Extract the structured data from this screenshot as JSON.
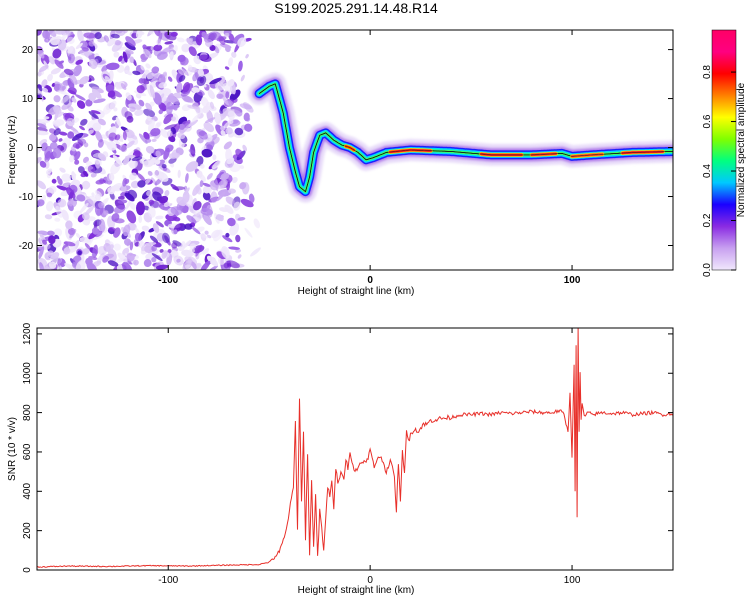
{
  "title": "S199.2025.291.14.48.R14",
  "chart_data": [
    {
      "type": "heatmap",
      "xlabel": "Height of straight line (km)",
      "ylabel": "Frequency (Hz)",
      "xlim": [
        -165,
        150
      ],
      "ylim": [
        -25,
        24
      ],
      "x_ticks": [
        -100,
        0,
        100
      ],
      "y_ticks": [
        -20,
        -10,
        0,
        10,
        20
      ],
      "colorbar": {
        "label": "Normalized spectral amplitude",
        "ticks": [
          0.0,
          0.2,
          0.4,
          0.6,
          0.8
        ],
        "range": [
          0,
          0.97
        ],
        "stops": [
          "#f0e8fc",
          "#c8a0f0",
          "#8a2be2",
          "#1a00ff",
          "#00c8ff",
          "#00ff80",
          "#80ff00",
          "#ffff00",
          "#ff8000",
          "#ff0000",
          "#ff0080",
          "#ff0066"
        ]
      },
      "noise_region_x": [
        -165,
        -55
      ],
      "ridge": {
        "x": [
          -55,
          -50,
          -47,
          -43,
          -40,
          -37,
          -35,
          -32,
          -30,
          -28,
          -25,
          -22,
          -18,
          -14,
          -10,
          -6,
          -2,
          2,
          8,
          20,
          40,
          60,
          80,
          95,
          100,
          110,
          130,
          150
        ],
        "y": [
          11,
          12.5,
          13,
          7,
          0,
          -5,
          -8,
          -9,
          -6,
          -1,
          2.5,
          3,
          1.5,
          0.5,
          0,
          -1,
          -2.5,
          -2,
          -1,
          -0.5,
          -0.8,
          -1.5,
          -1.5,
          -1.2,
          -1.8,
          -1.5,
          -1,
          -0.8
        ]
      }
    },
    {
      "type": "line",
      "xlabel": "Height of straight line (km)",
      "ylabel": "SNR (10 * v/v)",
      "xlim": [
        -165,
        150
      ],
      "ylim": [
        0,
        1230
      ],
      "x_ticks": [
        -100,
        0,
        100
      ],
      "y_ticks": [
        0,
        200,
        400,
        600,
        800,
        1000,
        1200
      ],
      "series": [
        {
          "name": "SNR",
          "color": "#e8302a",
          "x": [
            -165,
            -150,
            -130,
            -110,
            -90,
            -70,
            -55,
            -50,
            -45,
            -42,
            -40,
            -38,
            -37,
            -36,
            -35,
            -34,
            -33,
            -32,
            -31,
            -30,
            -29,
            -28,
            -27,
            -26,
            -25,
            -24,
            -23,
            -22,
            -21,
            -20,
            -19,
            -18,
            -17,
            -16,
            -15,
            -14,
            -13,
            -12,
            -11,
            -10,
            -8,
            -6,
            -4,
            -2,
            0,
            2,
            4,
            6,
            8,
            10,
            12,
            13,
            14,
            15,
            16,
            17,
            18,
            19,
            20,
            22,
            24,
            26,
            28,
            30,
            35,
            40,
            45,
            50,
            55,
            60,
            65,
            70,
            75,
            80,
            85,
            90,
            94,
            96,
            98,
            99,
            100,
            101,
            101.5,
            102,
            102.5,
            103,
            103.5,
            104,
            104.5,
            105,
            106,
            108,
            110,
            115,
            120,
            125,
            130,
            135,
            140,
            145,
            150
          ],
          "y": [
            15,
            20,
            18,
            22,
            20,
            25,
            28,
            40,
            90,
            180,
            300,
            420,
            750,
            200,
            880,
            350,
            700,
            150,
            600,
            80,
            450,
            120,
            380,
            60,
            300,
            220,
            90,
            260,
            420,
            380,
            460,
            300,
            520,
            450,
            480,
            500,
            470,
            560,
            520,
            600,
            500,
            520,
            560,
            540,
            610,
            520,
            580,
            560,
            500,
            560,
            470,
            300,
            550,
            340,
            600,
            500,
            710,
            650,
            690,
            720,
            700,
            740,
            740,
            760,
            770,
            775,
            790,
            790,
            795,
            790,
            800,
            795,
            800,
            805,
            800,
            800,
            810,
            790,
            700,
            900,
            580,
            1050,
            400,
            1150,
            260,
            1230,
            700,
            1000,
            760,
            850,
            780,
            800,
            790,
            800,
            795,
            800,
            790,
            795,
            800,
            790,
            795
          ]
        }
      ]
    }
  ]
}
